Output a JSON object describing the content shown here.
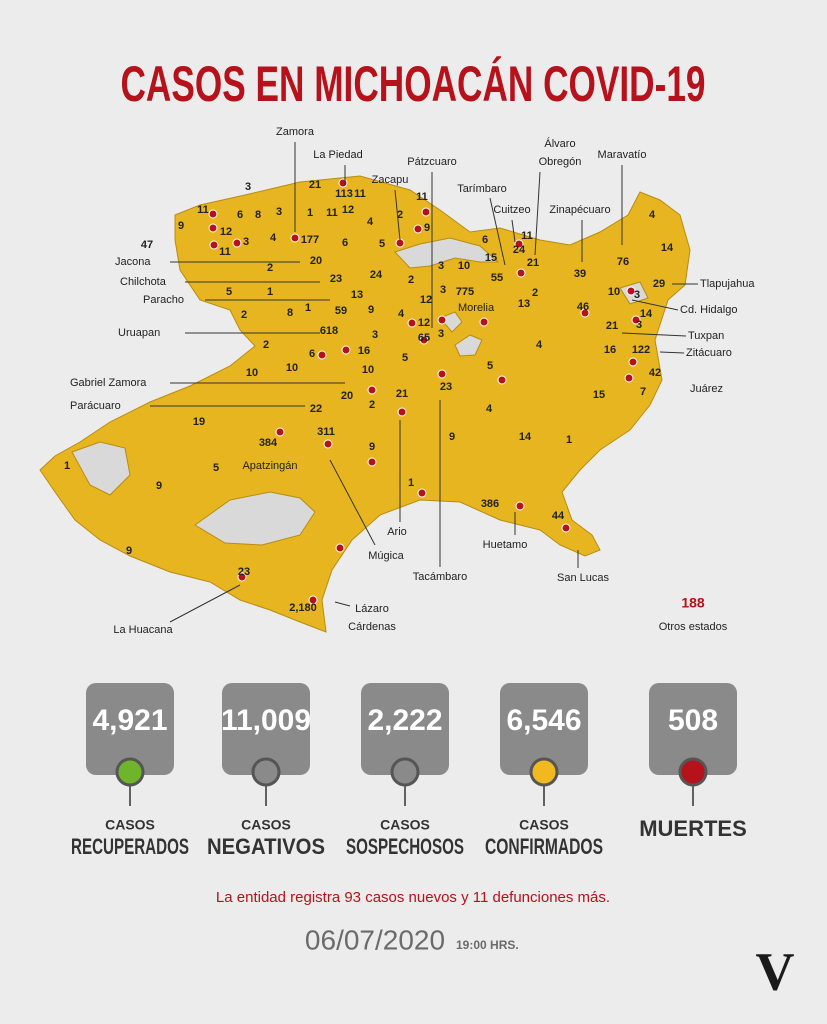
{
  "header": {
    "title": "CASOS EN MICHOACÁN COVID-19"
  },
  "map": {
    "places": [
      {
        "lines": [
          "Zamora"
        ]
      },
      {
        "lines": [
          "La Piedad"
        ]
      },
      {
        "lines": [
          "Pátzcuaro"
        ]
      },
      {
        "lines": [
          "Zacapu"
        ]
      },
      {
        "lines": [
          "Álvaro",
          "Obregón"
        ]
      },
      {
        "lines": [
          "Maravatío"
        ]
      },
      {
        "lines": [
          "Tarímbaro"
        ]
      },
      {
        "lines": [
          "Cuitzeo"
        ]
      },
      {
        "lines": [
          "Zinapécuaro"
        ]
      },
      {
        "lines": [
          "Jacona"
        ]
      },
      {
        "lines": [
          "Chilchota"
        ]
      },
      {
        "lines": [
          "Paracho"
        ]
      },
      {
        "lines": [
          "Uruapan"
        ]
      },
      {
        "lines": [
          "Gabriel Zamora"
        ]
      },
      {
        "lines": [
          "Parácuaro"
        ]
      },
      {
        "lines": [
          "Apatzingán"
        ]
      },
      {
        "lines": [
          "Morelia"
        ]
      },
      {
        "lines": [
          "Ario"
        ]
      },
      {
        "lines": [
          "Múgica"
        ]
      },
      {
        "lines": [
          "Tacámbaro"
        ]
      },
      {
        "lines": [
          "Huetamo"
        ]
      },
      {
        "lines": [
          "San Lucas"
        ]
      },
      {
        "lines": [
          "La Huacana"
        ]
      },
      {
        "lines": [
          "Lázaro",
          "Cárdenas"
        ]
      },
      {
        "lines": [
          "Tlapujahua"
        ]
      },
      {
        "lines": [
          "Cd. Hidalgo"
        ]
      },
      {
        "lines": [
          "Tuxpan"
        ]
      },
      {
        "lines": [
          "Zitácuaro"
        ]
      },
      {
        "lines": [
          "Juárez"
        ]
      }
    ],
    "counts": [
      3,
      21,
      113,
      11,
      11,
      9,
      6,
      8,
      3,
      1,
      11,
      12,
      4,
      2,
      11,
      9,
      12,
      3,
      4,
      11,
      177,
      6,
      5,
      20,
      2,
      23,
      24,
      5,
      1,
      13,
      2,
      8,
      1,
      59,
      9,
      618,
      3,
      4,
      12,
      12,
      2,
      3,
      3,
      10,
      15,
      6,
      11,
      24,
      21,
      55,
      775,
      2,
      13,
      39,
      76,
      4,
      14,
      29,
      10,
      3,
      46,
      14,
      21,
      3,
      16,
      122,
      42,
      7,
      15,
      1,
      4,
      14,
      4,
      5,
      23,
      9,
      21,
      2,
      10,
      16,
      5,
      3,
      65,
      6,
      2,
      10,
      10,
      20,
      22,
      311,
      384,
      19,
      5,
      9,
      1,
      9,
      1,
      386,
      44,
      9,
      23,
      "2,180",
      47
    ],
    "other_states": {
      "value": 188,
      "label": "Otros estados"
    }
  },
  "stats": [
    {
      "value": "4,921",
      "caption": "CASOS",
      "label": "RECUPERADOS"
    },
    {
      "value": "11,009",
      "caption": "CASOS",
      "label": "NEGATIVOS"
    },
    {
      "value": "2,222",
      "caption": "CASOS",
      "label": "SOSPECHOSOS"
    },
    {
      "value": "6,546",
      "caption": "CASOS",
      "label": "CONFIRMADOS"
    },
    {
      "value": "508",
      "label": "MUERTES"
    }
  ],
  "note": "La entidad registra 93 casos nuevos y 11 defunciones más.",
  "date": "06/07/2020",
  "time": "19:00 HRS.",
  "logo": "V"
}
